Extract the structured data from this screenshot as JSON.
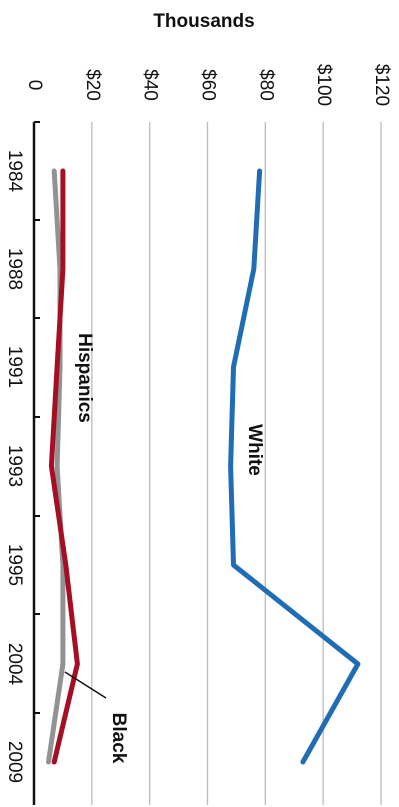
{
  "chart_data": {
    "type": "line",
    "ylabel": "Thousands",
    "ylim": [
      0,
      120
    ],
    "yticks": [
      {
        "value": 0,
        "label": "0"
      },
      {
        "value": 20,
        "label": "$20"
      },
      {
        "value": 40,
        "label": "$40"
      },
      {
        "value": 60,
        "label": "$60"
      },
      {
        "value": 80,
        "label": "$80"
      },
      {
        "value": 100,
        "label": "$100"
      },
      {
        "value": 120,
        "label": "$120"
      }
    ],
    "categories": [
      "1984",
      "1988",
      "1991",
      "1993",
      "1995",
      "2004",
      "2009"
    ],
    "orientation": "rotated-90-clockwise",
    "grid": true,
    "series": [
      {
        "name": "White",
        "color": "#1f6db5",
        "values": [
          78,
          76,
          69,
          68,
          69,
          112,
          93
        ]
      },
      {
        "name": "Hispanics",
        "color": "#a50f22",
        "values": [
          10,
          10,
          8,
          6,
          11,
          15,
          7
        ]
      },
      {
        "name": "Black",
        "color": "#929292",
        "values": [
          7,
          9,
          9,
          8,
          10,
          10,
          5
        ]
      }
    ],
    "annotations": [
      {
        "text": "White",
        "series": "White"
      },
      {
        "text": "Hispanics",
        "series": "Hispanics"
      },
      {
        "text": "Black",
        "series": "Black",
        "leader_line": true
      }
    ]
  }
}
